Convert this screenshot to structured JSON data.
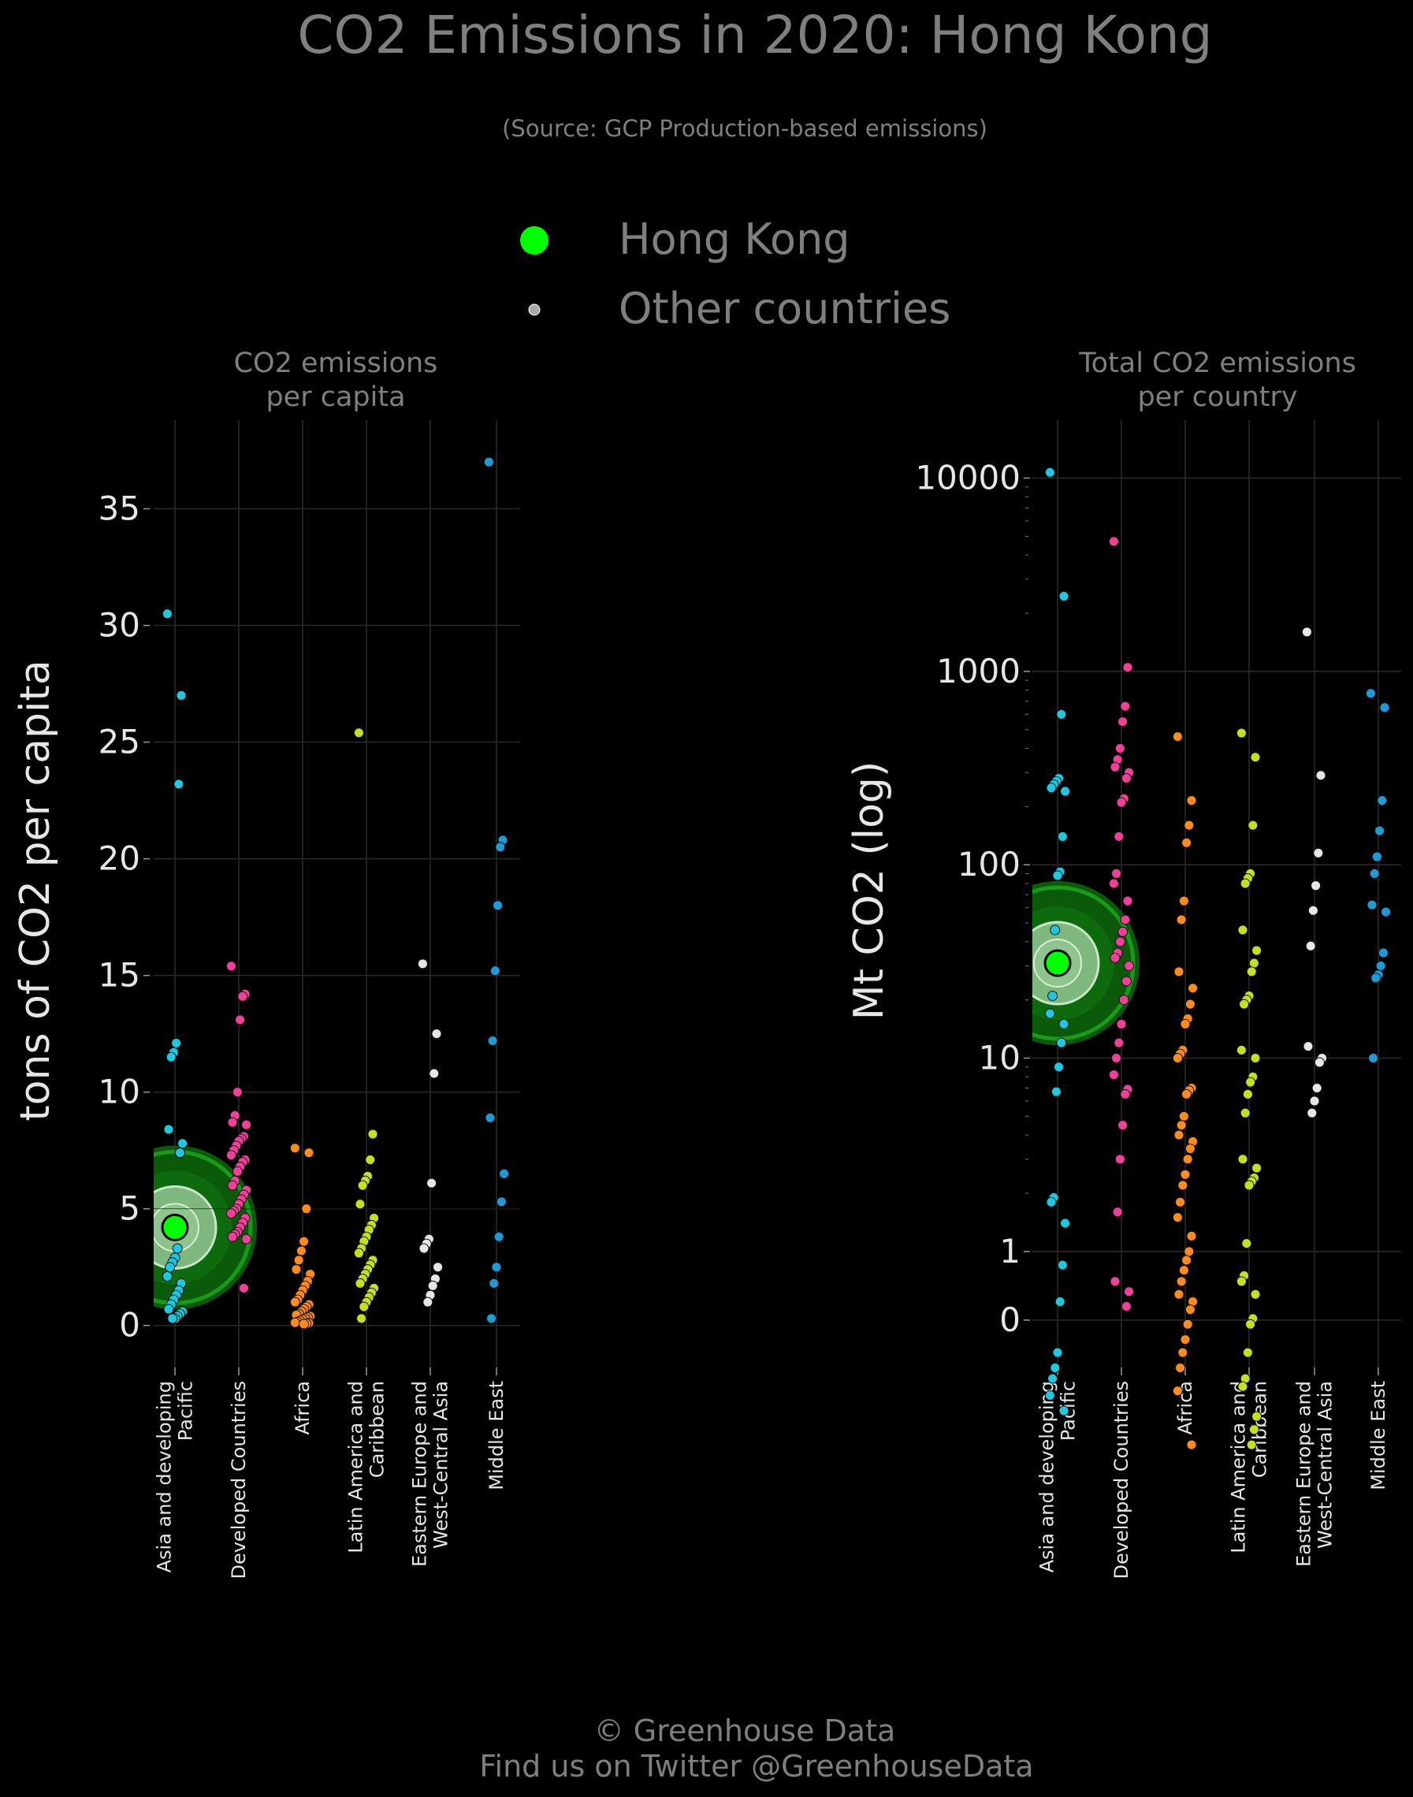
{
  "header": {
    "title": "CO2 Emissions in 2020: Hong Kong",
    "subtitle": "(Source: GCP Production-based emissions)"
  },
  "legend": {
    "items": [
      {
        "label": "Hong Kong",
        "color": "#00ff00"
      },
      {
        "label": "Other countries",
        "color": "#aaaaaa"
      }
    ]
  },
  "footer": {
    "line1": "© Greenhouse Data",
    "line2": "Find us on Twitter @GreenhouseData"
  },
  "colors": {
    "background": "#000000",
    "grid": "#2b2b2b",
    "text": "#7f7f7f",
    "tick_text": "#e6e6e6",
    "highlight": "#00ff00",
    "highlight_ring": "#0b7a0b",
    "region_colors": [
      "#1ec8e0",
      "#f0409a",
      "#ff8a1e",
      "#c6e020",
      "#e6e6e6",
      "#1e9ad6"
    ]
  },
  "chart_data": [
    {
      "type": "scatter",
      "title": "CO2 emissions\nper capita",
      "ylabel": "tons of CO2 per capita",
      "ylim": [
        -1.8,
        38.8
      ],
      "yticks": [
        0,
        5,
        10,
        15,
        20,
        25,
        30,
        35
      ],
      "ytick_labels": [
        "0",
        "5",
        "10",
        "15",
        "20",
        "25",
        "30",
        "35"
      ],
      "scale": "linear",
      "grid": true,
      "categories": [
        "Asia and developing\nPacific",
        "Developed Countries",
        "Africa",
        "Latin America and\nCaribbean",
        "Eastern Europe and\nWest-Central Asia",
        "Middle East"
      ],
      "highlight": {
        "name": "Hong Kong",
        "category": "Asia and developing\nPacific",
        "value": 4.2
      },
      "series": [
        {
          "category": "Asia and developing\nPacific",
          "values": [
            30.5,
            27.0,
            23.2,
            12.1,
            11.7,
            11.5,
            8.4,
            7.8,
            7.4,
            3.3,
            2.9,
            2.7,
            2.5,
            2.1,
            1.8,
            1.5,
            1.3,
            1.1,
            0.9,
            0.7,
            0.6,
            0.5,
            0.4,
            0.3,
            0.3
          ]
        },
        {
          "category": "Developed Countries",
          "values": [
            15.4,
            14.2,
            14.1,
            13.1,
            10.0,
            9.0,
            8.7,
            8.6,
            8.1,
            8.0,
            7.9,
            7.7,
            7.5,
            7.3,
            7.1,
            7.0,
            6.8,
            6.6,
            6.2,
            6.0,
            5.8,
            5.6,
            5.4,
            5.2,
            5.0,
            4.9,
            4.8,
            4.6,
            4.4,
            4.2,
            4.0,
            3.9,
            3.8,
            3.7,
            1.6
          ]
        },
        {
          "category": "Africa",
          "values": [
            7.6,
            7.4,
            5.0,
            3.6,
            3.2,
            2.8,
            2.4,
            2.2,
            1.9,
            1.7,
            1.5,
            1.3,
            1.1,
            1.0,
            0.9,
            0.8,
            0.7,
            0.6,
            0.5,
            0.45,
            0.4,
            0.35,
            0.3,
            0.25,
            0.2,
            0.15,
            0.12,
            0.1,
            0.08,
            0.06
          ]
        },
        {
          "category": "Latin America and\nCaribbean",
          "values": [
            25.4,
            8.2,
            7.1,
            6.4,
            6.2,
            6.0,
            5.2,
            4.6,
            4.3,
            4.1,
            3.8,
            3.6,
            3.3,
            3.1,
            2.8,
            2.6,
            2.4,
            2.2,
            2.0,
            1.8,
            1.6,
            1.4,
            1.2,
            1.0,
            0.8,
            0.3
          ]
        },
        {
          "category": "Eastern Europe and\nWest-Central Asia",
          "values": [
            15.5,
            12.5,
            10.8,
            6.1,
            3.7,
            3.5,
            3.3,
            2.5,
            2.0,
            1.7,
            1.3,
            1.0
          ]
        },
        {
          "category": "Middle East",
          "values": [
            37.0,
            20.8,
            20.5,
            18.0,
            15.2,
            12.2,
            8.9,
            6.5,
            5.3,
            3.8,
            2.5,
            1.8,
            0.3
          ]
        }
      ]
    },
    {
      "type": "scatter",
      "title": "Total CO2 emissions\nper country",
      "ylabel": "Mt CO2 (log)",
      "scale": "log",
      "log_ylim": [
        -0.6,
        4.3
      ],
      "yticks": [
        0,
        1,
        10,
        100,
        1000,
        10000
      ],
      "ytick_labels": [
        "0",
        "1",
        "10",
        "100",
        "1000",
        "10000"
      ],
      "grid": true,
      "categories": [
        "Asia and developing\nPacific",
        "Developed Countries",
        "Africa",
        "Latin America and\nCaribbean",
        "Eastern Europe and\nWest-Central Asia",
        "Middle East"
      ],
      "highlight": {
        "name": "Hong Kong",
        "category": "Asia and developing\nPacific",
        "value": 31
      },
      "series": [
        {
          "category": "Asia and developing\nPacific",
          "values": [
            10700,
            2450,
            600,
            280,
            270,
            260,
            250,
            240,
            140,
            92,
            88,
            46,
            21,
            17,
            15,
            12,
            9,
            6.7,
            1.9,
            1.8,
            1.4,
            0.85,
            0.55,
            0.3,
            0.25,
            0.22,
            0.18,
            0.15
          ]
        },
        {
          "category": "Developed Countries",
          "values": [
            4700,
            1050,
            660,
            550,
            400,
            350,
            320,
            300,
            280,
            220,
            210,
            140,
            90,
            80,
            65,
            52,
            45,
            40,
            35,
            33,
            30,
            25,
            20,
            15,
            12,
            10,
            8.2,
            6.9,
            6.5,
            4.5,
            3.0,
            1.6,
            0.7,
            0.62,
            0.52
          ]
        },
        {
          "category": "Africa",
          "values": [
            460,
            215,
            160,
            130,
            65,
            52,
            28,
            23,
            19,
            16,
            15,
            11,
            10.5,
            10,
            7,
            6.8,
            6.5,
            5.0,
            4.5,
            4.0,
            3.7,
            3.4,
            3.0,
            2.5,
            2.2,
            1.8,
            1.5,
            1.2,
            1.0,
            0.9,
            0.8,
            0.7,
            0.6,
            0.55,
            0.5,
            0.42,
            0.35,
            0.3,
            0.25,
            0.19,
            0.1
          ]
        },
        {
          "category": "Latin America and\nCaribbean",
          "values": [
            480,
            360,
            160,
            90,
            85,
            80,
            46,
            36,
            31,
            28,
            21,
            20,
            19,
            11,
            10,
            8,
            7.5,
            6.5,
            5.2,
            3,
            2.7,
            2.4,
            2.3,
            2.2,
            1.1,
            0.75,
            0.7,
            0.6,
            0.45,
            0.42,
            0.3,
            0.22,
            0.2,
            0.14,
            0.12,
            0.1
          ]
        },
        {
          "category": "Eastern Europe and\nWest-Central Asia",
          "values": [
            1600,
            290,
            115,
            78,
            58,
            38,
            11.5,
            10,
            9.5,
            7,
            6,
            5.2
          ]
        },
        {
          "category": "Middle East",
          "values": [
            770,
            650,
            215,
            150,
            110,
            90,
            62,
            57,
            35,
            30,
            27,
            26,
            10
          ]
        }
      ]
    }
  ]
}
